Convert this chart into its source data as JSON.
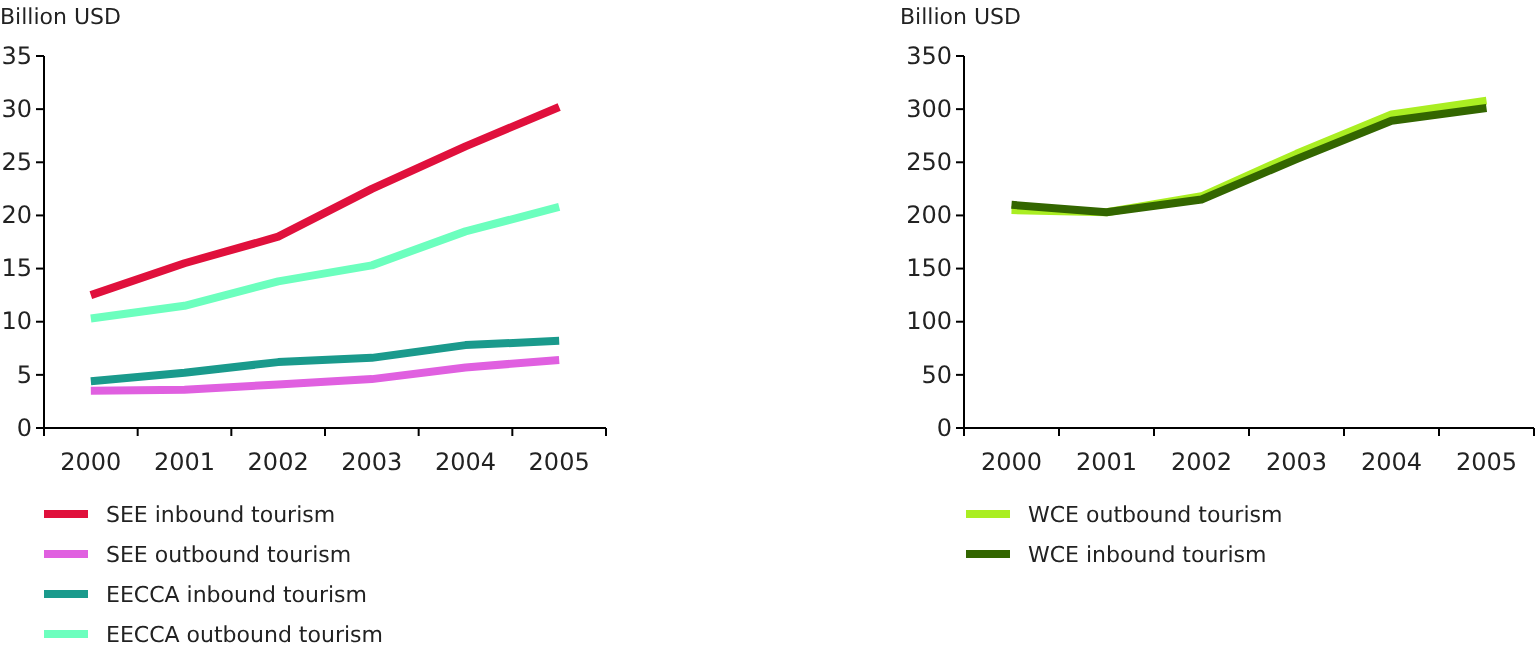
{
  "chart_data": [
    {
      "type": "line",
      "ylabel": "Billion USD",
      "categories": [
        "2000",
        "2001",
        "2002",
        "2003",
        "2004",
        "2005"
      ],
      "ylim": [
        0,
        35
      ],
      "yticks": [
        0,
        5,
        10,
        15,
        20,
        25,
        30,
        35
      ],
      "grid": false,
      "legend": "bottom",
      "line_style": "solid",
      "marker": "none",
      "series": [
        {
          "name": "SEE inbound tourism",
          "color": "#e0103c",
          "values": [
            12.5,
            15.5,
            18,
            22.5,
            26.5,
            30.2
          ]
        },
        {
          "name": "SEE outbound tourism",
          "color": "#e060e0",
          "values": [
            3.5,
            3.6,
            4.1,
            4.6,
            5.7,
            6.4
          ]
        },
        {
          "name": "EECCA inbound tourism",
          "color": "#1a9a8c",
          "values": [
            4.4,
            5.2,
            6.2,
            6.6,
            7.8,
            8.2
          ]
        },
        {
          "name": "EECCA outbound tourism",
          "color": "#6cffbe",
          "values": [
            10.3,
            11.5,
            13.8,
            15.3,
            18.5,
            20.8
          ]
        }
      ]
    },
    {
      "type": "line",
      "ylabel": "Billion USD",
      "categories": [
        "2000",
        "2001",
        "2002",
        "2003",
        "2004",
        "2005"
      ],
      "ylim": [
        0,
        350
      ],
      "yticks": [
        0,
        50,
        100,
        150,
        200,
        250,
        300,
        350
      ],
      "grid": false,
      "legend": "bottom",
      "line_style": "solid",
      "marker": "none",
      "series": [
        {
          "name": "WCE outbound tourism",
          "color": "#aaee22",
          "values": [
            205,
            203,
            218,
            258,
            295,
            308
          ]
        },
        {
          "name": "WCE inbound tourism",
          "color": "#336600",
          "values": [
            210,
            203,
            215,
            253,
            289,
            301
          ]
        }
      ]
    }
  ]
}
